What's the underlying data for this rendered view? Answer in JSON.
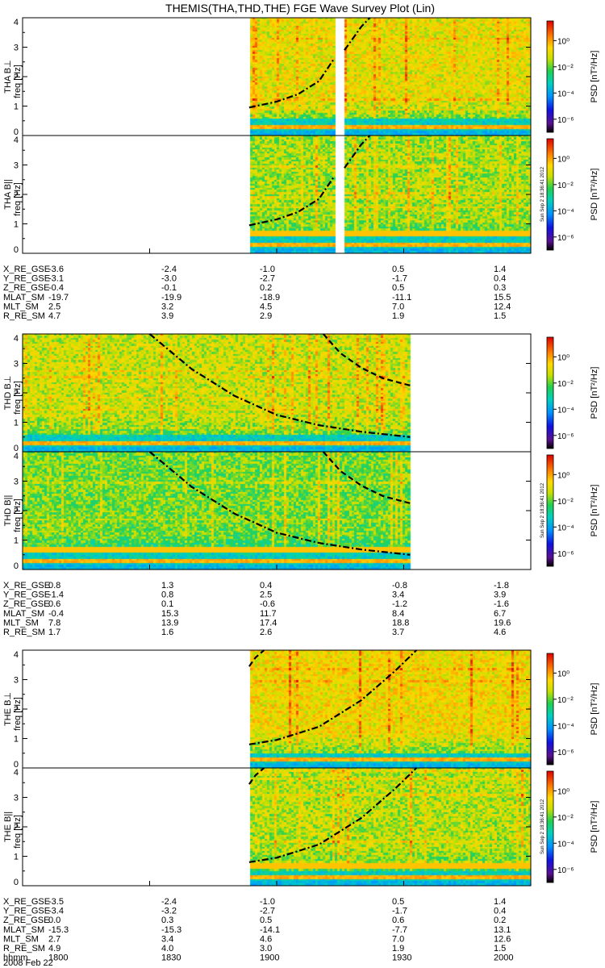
{
  "title": "THEMIS(THA,THD,THE) FGE Wave Survey Plot (Lin)",
  "date_label": "2008 Feb 22",
  "colorbar": {
    "label": "PSD [nT²/Hz]",
    "tick_labels": [
      "10⁰",
      "10⁻²",
      "10⁻⁴",
      "10⁻⁶"
    ],
    "tick_exponents": [
      0,
      -2,
      -4,
      -6
    ],
    "range_exponents": [
      -7,
      1.5
    ]
  },
  "stamp": "Sun Sep  2 18:36:41 2012",
  "chart_data": {
    "type": "heatmap",
    "x_range_minutes": [
      0,
      120
    ],
    "x_ticks_minutes": [
      0,
      30,
      60,
      90,
      120
    ],
    "x_tick_labels": [
      "1800",
      "1830",
      "1900",
      "1930",
      "2000"
    ],
    "ylim": [
      0,
      4
    ],
    "y_ticks": [
      "0",
      "1",
      "2",
      "3",
      "4"
    ],
    "ylabel_unit": "freq [Hz]",
    "probes": [
      {
        "panels": [
          {
            "label": "THA B⊥",
            "stamp": false
          },
          {
            "label": "THA B||",
            "stamp": true
          }
        ],
        "data_range_minutes": [
          53.5,
          120
        ],
        "gap_minutes": [
          73.5,
          76
        ],
        "band_y_max": 0.55,
        "base_intensity": 0.72,
        "curves": [
          {
            "style": "dashdot",
            "points": [
              [
                53.5,
                0.95
              ],
              [
                60,
                1.15
              ],
              [
                65,
                1.4
              ],
              [
                70,
                1.85
              ],
              [
                73.5,
                2.6
              ]
            ]
          },
          {
            "style": "dashdot",
            "points": [
              [
                76,
                2.9
              ],
              [
                78,
                3.3
              ],
              [
                80,
                3.7
              ],
              [
                82,
                4.0
              ]
            ]
          }
        ],
        "ephemeris": [
          {
            "name": "X_RE_GSE",
            "values": [
              "-3.6",
              "-2.4",
              "-1.0",
              "0.5",
              "1.4"
            ]
          },
          {
            "name": "Y_RE_GSE",
            "values": [
              "-3.1",
              "-3.0",
              "-2.7",
              "-1.7",
              "0.4"
            ]
          },
          {
            "name": "Z_RE_GSE",
            "values": [
              "-0.4",
              "-0.1",
              "0.2",
              "0.5",
              "0.3"
            ]
          },
          {
            "name": "MLAT_SM",
            "values": [
              "-19.7",
              "-19.9",
              "-18.9",
              "-11.1",
              "15.5"
            ]
          },
          {
            "name": "MLT_SM",
            "values": [
              "2.5",
              "3.2",
              "4.5",
              "7.0",
              "12.4"
            ]
          },
          {
            "name": "R_RE_SM",
            "values": [
              "4.7",
              "3.9",
              "2.9",
              "1.9",
              "1.5"
            ]
          }
        ]
      },
      {
        "panels": [
          {
            "label": "THD B⊥",
            "stamp": false
          },
          {
            "label": "THD B||",
            "stamp": true
          }
        ],
        "data_range_minutes": [
          0,
          91.5
        ],
        "gap_minutes": null,
        "band_y_max": 0.55,
        "base_intensity": 0.68,
        "curves": [
          {
            "style": "dashdot",
            "points": [
              [
                30,
                4.0
              ],
              [
                40,
                2.8
              ],
              [
                50,
                1.9
              ],
              [
                60,
                1.25
              ],
              [
                70,
                0.9
              ],
              [
                80,
                0.68
              ],
              [
                91.5,
                0.5
              ]
            ]
          },
          {
            "style": "dash",
            "points": [
              [
                71,
                4.0
              ],
              [
                75,
                3.35
              ],
              [
                80,
                2.85
              ],
              [
                85,
                2.5
              ],
              [
                91.5,
                2.25
              ]
            ]
          }
        ],
        "ephemeris": [
          {
            "name": "X_RE_GSE",
            "values": [
              "0.8",
              "1.3",
              "0.4",
              "-0.8",
              "-1.8"
            ]
          },
          {
            "name": "Y_RE_GSE",
            "values": [
              "-1.4",
              "0.8",
              "2.5",
              "3.4",
              "3.9"
            ]
          },
          {
            "name": "Z_RE_GSE",
            "values": [
              "0.6",
              "0.1",
              "-0.6",
              "-1.2",
              "-1.6"
            ]
          },
          {
            "name": "MLAT_SM",
            "values": [
              "-0.4",
              "15.3",
              "11.7",
              "8.4",
              "6.7"
            ]
          },
          {
            "name": "MLT_SM",
            "values": [
              "7.8",
              "13.9",
              "17.4",
              "18.8",
              "19.6"
            ]
          },
          {
            "name": "R_RE_SM",
            "values": [
              "1.7",
              "1.6",
              "2.6",
              "3.7",
              "4.6"
            ]
          }
        ]
      },
      {
        "panels": [
          {
            "label": "THE B⊥",
            "stamp": false
          },
          {
            "label": "THE B||",
            "stamp": true
          }
        ],
        "data_range_minutes": [
          53.5,
          120
        ],
        "gap_minutes": null,
        "band_y_max": 0.45,
        "base_intensity": 0.74,
        "curves": [
          {
            "style": "dashdot",
            "points": [
              [
                53.5,
                0.8
              ],
              [
                60,
                0.95
              ],
              [
                70,
                1.4
              ],
              [
                80,
                2.3
              ],
              [
                88,
                3.3
              ],
              [
                93,
                4.0
              ]
            ]
          },
          {
            "style": "dash",
            "points": [
              [
                53.5,
                3.45
              ],
              [
                55,
                3.75
              ],
              [
                57,
                4.0
              ]
            ]
          }
        ],
        "ephemeris": [
          {
            "name": "X_RE_GSE",
            "values": [
              "-3.5",
              "-2.4",
              "-1.0",
              "0.5",
              "1.4"
            ]
          },
          {
            "name": "Y_RE_GSE",
            "values": [
              "-3.4",
              "-3.2",
              "-2.7",
              "-1.7",
              "0.4"
            ]
          },
          {
            "name": "Z_RE_GSE",
            "values": [
              "0.0",
              "0.3",
              "0.5",
              "0.6",
              "0.2"
            ]
          },
          {
            "name": "MLAT_SM",
            "values": [
              "-15.3",
              "-15.3",
              "-14.1",
              "-7.7",
              "13.1"
            ]
          },
          {
            "name": "MLT_SM",
            "values": [
              "2.7",
              "3.4",
              "4.6",
              "7.0",
              "12.6"
            ]
          },
          {
            "name": "R_RE_SM",
            "values": [
              "4.9",
              "4.0",
              "3.0",
              "1.9",
              "1.5"
            ]
          },
          {
            "name": "hhmm",
            "values": [
              "1800",
              "1830",
              "1900",
              "1930",
              "2000"
            ]
          }
        ]
      }
    ]
  }
}
